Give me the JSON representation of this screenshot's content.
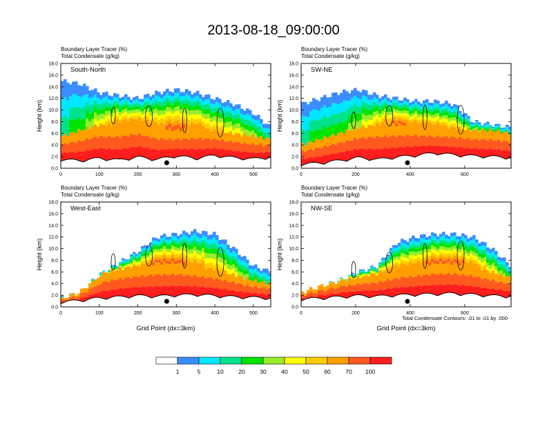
{
  "title": "2013-08-18_09:00:00",
  "colors": {
    "contour_line": "#000000",
    "frame": "#000000",
    "terrain_fill": "#ffffff",
    "marker": "#000000",
    "levels": [
      "#ffffff",
      "#3a8dff",
      "#00e8ff",
      "#00e38a",
      "#00e400",
      "#9aeb2a",
      "#ffff00",
      "#ffcc00",
      "#ffa000",
      "#ff5a1e",
      "#ff1e1e"
    ]
  },
  "colorbar": {
    "labels": [
      "1",
      "5",
      "10",
      "20",
      "30",
      "40",
      "50",
      "60",
      "70",
      "100"
    ]
  },
  "contour_note": "Total Condensate Contours: .01 to .01 by .000",
  "chart_data": [
    {
      "type": "heatmap",
      "panel_label": "South-North",
      "subtitle_line1": "Boundary Layer Tracer    (%)",
      "subtitle_line2": "Total Condensate    (g/kg)",
      "ylabel": "Height (km)",
      "xlabel": "",
      "xlim": [
        0,
        545
      ],
      "ylim": [
        0,
        18
      ],
      "xticks": [
        0,
        100,
        200,
        300,
        400,
        500
      ],
      "xtick_labels": [
        "0",
        "100",
        "200",
        "300",
        "400",
        "500"
      ],
      "yticks": [
        0,
        2,
        4,
        6,
        8,
        10,
        12,
        14,
        16,
        18
      ],
      "ytick_labels": [
        "0.0",
        "2.0",
        "4.0",
        "6.0",
        "8.0",
        "10.0",
        "12.0",
        "14.0",
        "16.0",
        "18.0"
      ],
      "marker_x": 275,
      "terrain_x": [
        0,
        50,
        100,
        150,
        200,
        250,
        300,
        350,
        400,
        450,
        500,
        545
      ],
      "terrain_height": [
        1.2,
        1.0,
        1.4,
        1.1,
        1.6,
        1.2,
        1.8,
        1.4,
        1.9,
        1.5,
        1.3,
        1.6
      ],
      "tracer_x": [
        0,
        50,
        100,
        150,
        200,
        250,
        300,
        350,
        400,
        450,
        500,
        545
      ],
      "tracer_top_km": [
        15,
        14.5,
        13,
        12.5,
        12,
        13,
        13.5,
        13,
        12,
        11,
        9.5,
        7
      ],
      "tracer_top_level": [
        3,
        4,
        6,
        8,
        8,
        8,
        9,
        8,
        7,
        6,
        5,
        3
      ],
      "pbl_depth_km": [
        4.5,
        5.5,
        6.5,
        6.5,
        7.0,
        6.0,
        5.5,
        6.0,
        5.5,
        5.0,
        4.5,
        4.0
      ]
    },
    {
      "type": "heatmap",
      "panel_label": "SW-NE",
      "subtitle_line1": "Boundary Layer Tracer    (%)",
      "subtitle_line2": "Total Condensate    (g/kg)",
      "ylabel": "Height (km)",
      "xlabel": "",
      "xlim": [
        0,
        770
      ],
      "ylim": [
        0,
        18
      ],
      "xticks": [
        0,
        200,
        400,
        600
      ],
      "xtick_labels": [
        "0",
        "200",
        "400",
        "600"
      ],
      "yticks": [
        0,
        2,
        4,
        6,
        8,
        10,
        12,
        14,
        16,
        18
      ],
      "ytick_labels": [
        "0.0",
        "2.0",
        "4.0",
        "6.0",
        "8.0",
        "10.0",
        "12.0",
        "14.0",
        "16.0",
        "18.0"
      ],
      "marker_x": 390,
      "terrain_x": [
        0,
        70,
        140,
        210,
        280,
        350,
        420,
        490,
        560,
        630,
        700,
        770
      ],
      "terrain_height": [
        0.4,
        0.6,
        1.0,
        1.5,
        1.2,
        1.6,
        1.9,
        2.3,
        2.0,
        1.8,
        1.7,
        1.5
      ],
      "tracer_x": [
        0,
        70,
        140,
        210,
        280,
        350,
        420,
        490,
        560,
        630,
        700,
        770
      ],
      "tracer_top_km": [
        11,
        12,
        13,
        13.5,
        12.5,
        12,
        11.5,
        11.5,
        11,
        8,
        7.5,
        7
      ],
      "tracer_top_level": [
        3,
        4,
        4,
        5,
        7,
        9,
        8,
        8,
        7,
        5,
        4,
        3
      ],
      "pbl_depth_km": [
        3.0,
        4.0,
        5.0,
        6.0,
        6.5,
        6.5,
        6.5,
        6.0,
        6.0,
        5.5,
        5.5,
        5.0
      ]
    },
    {
      "type": "heatmap",
      "panel_label": "West-East",
      "subtitle_line1": "Boundary Layer Tracer    (%)",
      "subtitle_line2": "Total Condensate    (g/kg)",
      "ylabel": "Height (km)",
      "xlabel": "Grid Point (dx=3km)",
      "xlim": [
        0,
        545
      ],
      "ylim": [
        0,
        18
      ],
      "xticks": [
        0,
        100,
        200,
        300,
        400,
        500
      ],
      "xtick_labels": [
        "0",
        "100",
        "200",
        "300",
        "400",
        "500"
      ],
      "yticks": [
        0,
        2,
        4,
        6,
        8,
        10,
        12,
        14,
        16,
        18
      ],
      "ytick_labels": [
        "0.0",
        "2.0",
        "4.0",
        "6.0",
        "8.0",
        "10.0",
        "12.0",
        "14.0",
        "16.0",
        "18.0"
      ],
      "marker_x": 275,
      "terrain_x": [
        0,
        50,
        100,
        150,
        200,
        250,
        300,
        350,
        400,
        450,
        500,
        545
      ],
      "terrain_height": [
        0.5,
        0.8,
        1.2,
        1.4,
        1.6,
        1.5,
        1.7,
        1.8,
        1.6,
        1.4,
        1.3,
        1.2
      ],
      "tracer_x": [
        0,
        50,
        100,
        150,
        200,
        250,
        300,
        350,
        400,
        450,
        500,
        545
      ],
      "tracer_top_km": [
        1.5,
        2.5,
        5.5,
        7.5,
        9.5,
        12,
        12.5,
        13,
        12.5,
        10,
        7,
        6
      ],
      "tracer_top_level": [
        2,
        3,
        5,
        6,
        7,
        9,
        9,
        8,
        7,
        6,
        4,
        3
      ],
      "pbl_depth_km": [
        0.8,
        2.0,
        4.5,
        5.5,
        6.0,
        6.5,
        6.5,
        6.0,
        5.5,
        4.5,
        3.5,
        3.0
      ]
    },
    {
      "type": "heatmap",
      "panel_label": "NW-SE",
      "subtitle_line1": "Boundary Layer Tracer    (%)",
      "subtitle_line2": "Total Condensate    (g/kg)",
      "ylabel": "Height (km)",
      "xlabel": "Grid Point (dx=3km)",
      "xlim": [
        0,
        770
      ],
      "ylim": [
        0,
        18
      ],
      "xticks": [
        0,
        200,
        400,
        600
      ],
      "xtick_labels": [
        "0",
        "200",
        "400",
        "600"
      ],
      "yticks": [
        0,
        2,
        4,
        6,
        8,
        10,
        12,
        14,
        16,
        18
      ],
      "ytick_labels": [
        "0.0",
        "2.0",
        "4.0",
        "6.0",
        "8.0",
        "10.0",
        "12.0",
        "14.0",
        "16.0",
        "18.0"
      ],
      "marker_x": 390,
      "terrain_x": [
        0,
        70,
        140,
        210,
        280,
        350,
        420,
        490,
        560,
        630,
        700,
        770
      ],
      "terrain_height": [
        1.0,
        1.2,
        1.4,
        1.6,
        1.5,
        1.7,
        1.8,
        1.9,
        2.0,
        1.8,
        1.6,
        1.5
      ],
      "tracer_x": [
        0,
        70,
        140,
        210,
        280,
        350,
        420,
        490,
        560,
        630,
        700,
        770
      ],
      "tracer_top_km": [
        2.5,
        3.5,
        4.5,
        6,
        7,
        11,
        12,
        12.5,
        12.5,
        12,
        10,
        7
      ],
      "tracer_top_level": [
        4,
        5,
        6,
        7,
        8,
        8,
        8,
        9,
        9,
        8,
        6,
        4
      ],
      "pbl_depth_km": [
        2.5,
        3.0,
        3.5,
        4.0,
        4.5,
        5.5,
        6.0,
        6.5,
        6.5,
        6.0,
        5.0,
        4.0
      ]
    }
  ]
}
